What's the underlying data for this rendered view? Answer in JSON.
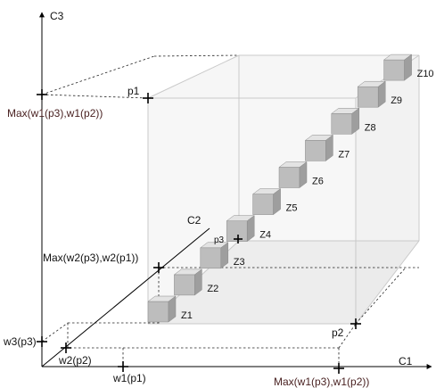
{
  "axes": {
    "c1": "C1",
    "c2": "C2",
    "c3": "C3"
  },
  "labels": {
    "c3_max": "Max(w1(p3),w1(p2))",
    "c2_max": "Max(w2(p3),w2(p1))",
    "c1_max": "Max(w1(p3),w1(p2))",
    "w3": "w3(p3)",
    "w2": "w2(p2)",
    "w1": "w1(p1)"
  },
  "points": {
    "p1": "p1",
    "p2": "p2",
    "p3": "p3"
  },
  "cubes": [
    "Z1",
    "Z2",
    "Z3",
    "Z4",
    "Z5",
    "Z6",
    "Z7",
    "Z8",
    "Z9",
    "Z10"
  ],
  "colors": {
    "cube_front": "#bdbdbd",
    "cube_top": "#e3e3e3",
    "cube_side": "#9e9e9e",
    "bounding_box": "#c9c9c9",
    "axis": "#000000"
  }
}
